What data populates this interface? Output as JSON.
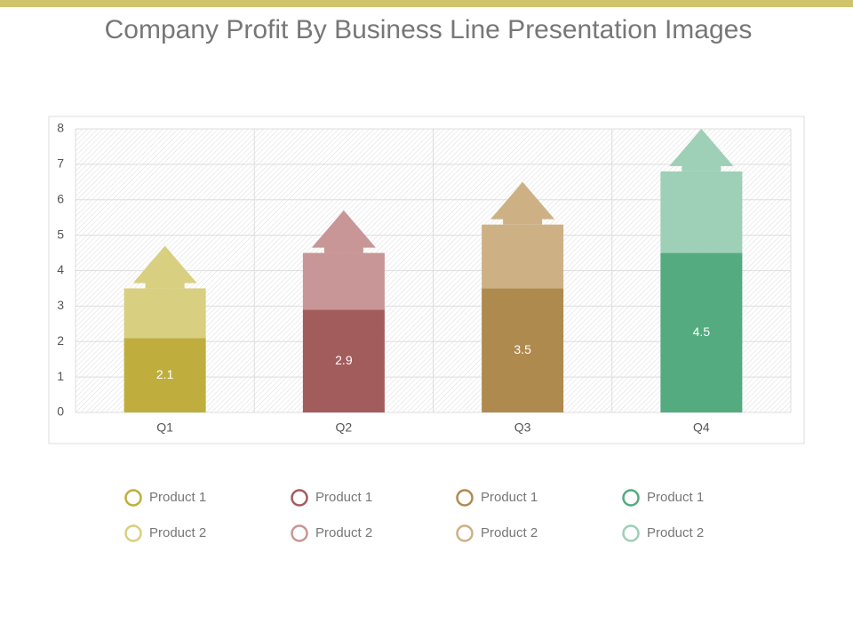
{
  "chart_data": {
    "type": "bar",
    "stacked": true,
    "title": "Company Profit By Business Line Presentation Images",
    "categories": [
      "Q1",
      "Q2",
      "Q3",
      "Q4"
    ],
    "series": [
      {
        "name": "Product 1",
        "colors": [
          "#bfae3d",
          "#a35c5c",
          "#ae8a4f",
          "#54ab7f"
        ],
        "values": [
          2.1,
          2.9,
          3.5,
          4.5
        ]
      },
      {
        "name": "Product 2",
        "colors": [
          "#d8cf80",
          "#c89696",
          "#cdb185",
          "#9ecfb7"
        ],
        "values": [
          1.4,
          1.6,
          1.8,
          2.3
        ]
      }
    ],
    "ylim": [
      0,
      8
    ],
    "yticks": [
      0,
      1,
      2,
      3,
      4,
      5,
      6,
      7,
      8
    ],
    "grid": true
  }
}
